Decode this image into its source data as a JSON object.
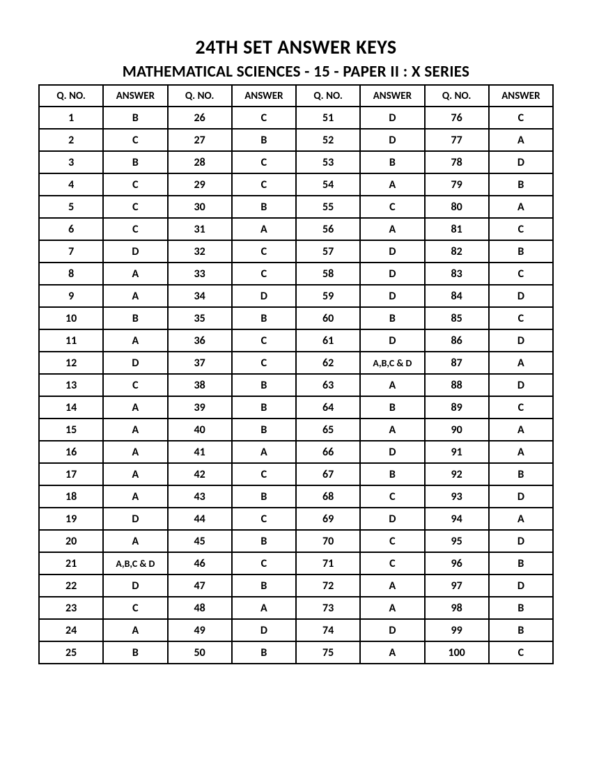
{
  "titles": {
    "main": "24TH SET ANSWER KEYS",
    "sub": "MATHEMATICAL SCIENCES - 15 - PAPER II : X SERIES"
  },
  "table": {
    "headers": {
      "qno": "Q. NO.",
      "answer": "ANSWER"
    },
    "style": {
      "border_color": "#000000",
      "border_width": 2,
      "text_color": "#000000",
      "background_color": "#ffffff",
      "header_fontsize": 15,
      "cell_fontsize": 16,
      "small_cell_fontsize": 14,
      "font_weight": "bold",
      "title_main_fontsize": 28,
      "title_sub_fontsize": 23
    },
    "columns_count": 4,
    "rows_per_column": 25,
    "answers": {
      "1": "B",
      "2": "C",
      "3": "B",
      "4": "C",
      "5": "C",
      "6": "C",
      "7": "D",
      "8": "A",
      "9": "A",
      "10": "B",
      "11": "A",
      "12": "D",
      "13": "C",
      "14": "A",
      "15": "A",
      "16": "A",
      "17": "A",
      "18": "A",
      "19": "D",
      "20": "A",
      "21": "A,B,C & D",
      "22": "D",
      "23": "C",
      "24": "A",
      "25": "B",
      "26": "C",
      "27": "B",
      "28": "C",
      "29": "C",
      "30": "B",
      "31": "A",
      "32": "C",
      "33": "C",
      "34": "D",
      "35": "B",
      "36": "C",
      "37": "C",
      "38": "B",
      "39": "B",
      "40": "B",
      "41": "A",
      "42": "C",
      "43": "B",
      "44": "C",
      "45": "B",
      "46": "C",
      "47": "B",
      "48": "A",
      "49": "D",
      "50": "B",
      "51": "D",
      "52": "D",
      "53": "B",
      "54": "A",
      "55": "C",
      "56": "A",
      "57": "D",
      "58": "D",
      "59": "D",
      "60": "B",
      "61": "D",
      "62": "A,B,C & D",
      "63": "A",
      "64": "B",
      "65": "A",
      "66": "D",
      "67": "B",
      "68": "C",
      "69": "D",
      "70": "C",
      "71": "C",
      "72": "A",
      "73": "A",
      "74": "D",
      "75": "A",
      "76": "C",
      "77": "A",
      "78": "D",
      "79": "B",
      "80": "A",
      "81": "C",
      "82": "B",
      "83": "C",
      "84": "D",
      "85": "C",
      "86": "D",
      "87": "A",
      "88": "D",
      "89": "C",
      "90": "A",
      "91": "A",
      "92": "B",
      "93": "D",
      "94": "A",
      "95": "D",
      "96": "B",
      "97": "D",
      "98": "B",
      "99": "B",
      "100": "C"
    }
  }
}
